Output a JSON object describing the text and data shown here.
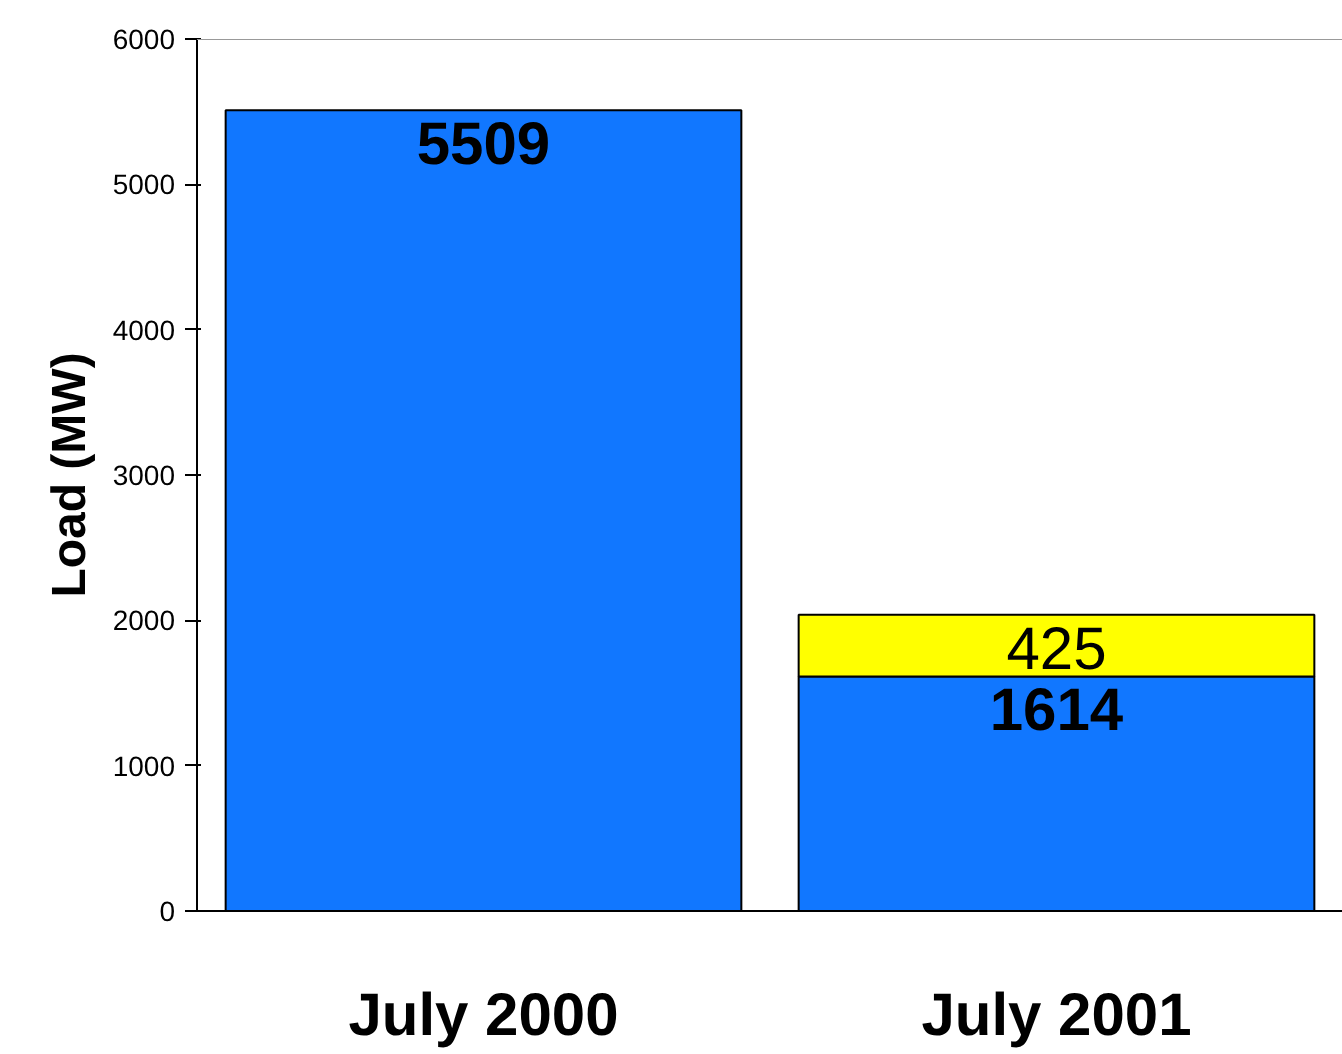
{
  "chart_data": {
    "type": "bar",
    "stacked": true,
    "ylabel": "Load (MW)",
    "categories": [
      "July 2000",
      "July 2001"
    ],
    "series": [
      {
        "color": "#1177ff",
        "values": [
          5509,
          1614
        ]
      },
      {
        "color": "#ffff00",
        "values": [
          null,
          425
        ]
      }
    ],
    "ylim": [
      0,
      6000
    ],
    "yticks": [
      0,
      1000,
      2000,
      3000,
      4000,
      5000,
      6000
    ],
    "data_labels": true,
    "grid": false
  }
}
